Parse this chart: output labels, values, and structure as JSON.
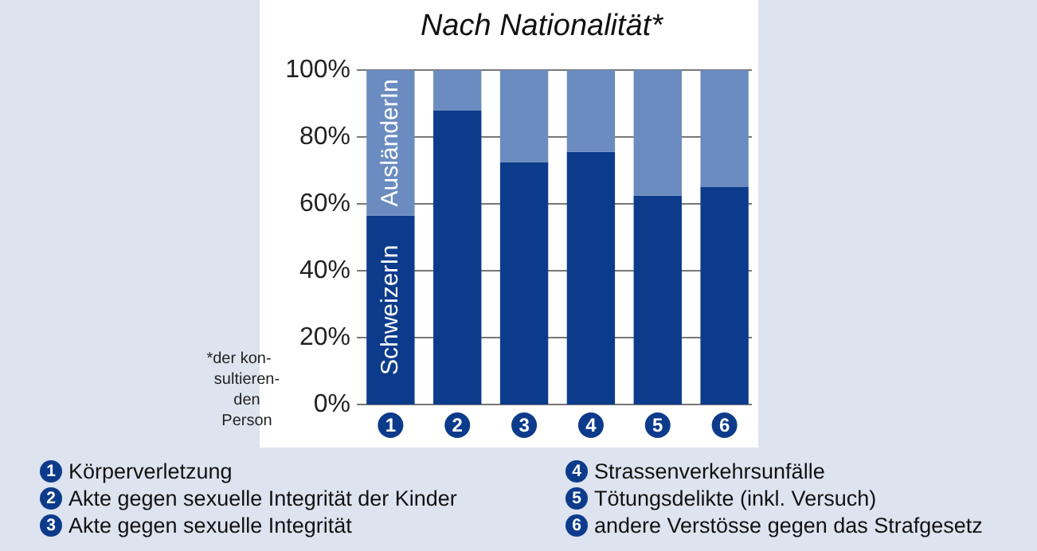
{
  "chart_data": {
    "type": "bar",
    "title": "Nach Nationalität*",
    "stacked": true,
    "categories": [
      "1",
      "2",
      "3",
      "4",
      "5",
      "6"
    ],
    "series": [
      {
        "name": "SchweizerIn",
        "color": "#0d3b8c",
        "values": [
          56.5,
          88,
          72.5,
          75.5,
          62.5,
          65
        ]
      },
      {
        "name": "AusländerIn",
        "color": "#6b8cc0",
        "values": [
          43.5,
          12,
          27.5,
          24.5,
          37.5,
          35
        ]
      }
    ],
    "ylim": [
      0,
      100
    ],
    "yticks": [
      {
        "value": 0,
        "label": "0%"
      },
      {
        "value": 20,
        "label": "20%"
      },
      {
        "value": 40,
        "label": "40%"
      },
      {
        "value": 60,
        "label": "60%"
      },
      {
        "value": 80,
        "label": "80%"
      },
      {
        "value": 100,
        "label": "100%"
      }
    ],
    "grid": "y",
    "annotations": [
      "Körperverletzung",
      "Akte gegen sexuelle Integrität der Kinder",
      "Akte gegen sexuelle Integrität",
      "Strassenverkehrsunfälle",
      "Tötungsdelikte (inkl. Versuch)",
      "andere Verstösse gegen das Strafgesetz",
      "*der kon-\nsultieren-\nden\nPerson"
    ]
  }
}
